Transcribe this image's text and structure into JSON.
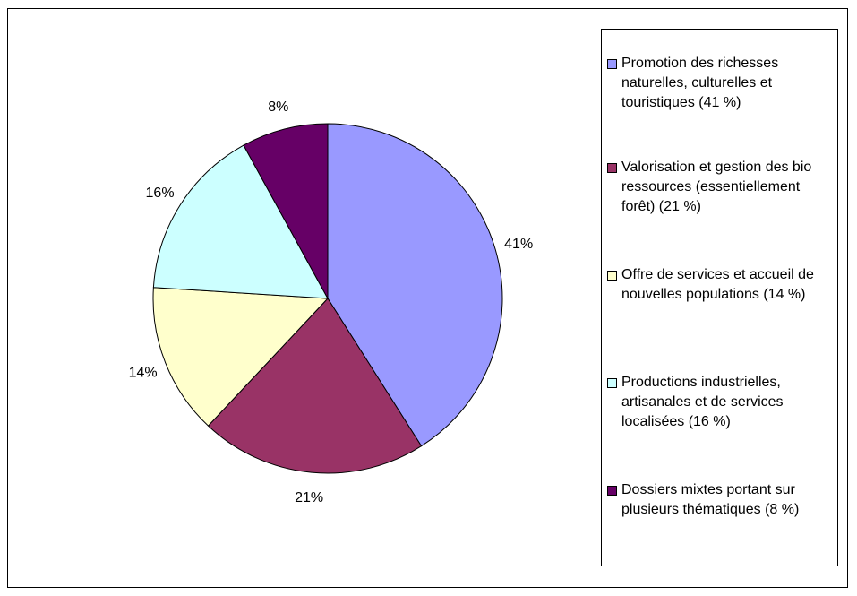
{
  "chart_data": {
    "type": "pie",
    "start": "top",
    "direction": "clockwise",
    "slices": [
      {
        "label": "Promotion des richesses naturelles, culturelles et touristiques (41 %)",
        "value": 41,
        "data_label": "41%",
        "color": "#9999FF",
        "legend_lines": [
          "Promotion des richesses",
          "naturelles, culturelles et",
          "touristiques (41 %)"
        ]
      },
      {
        "label": "Valorisation et gestion des bio ressources (essentiellement forêt) (21 %)",
        "value": 21,
        "data_label": "21%",
        "color": "#993366",
        "legend_lines": [
          "Valorisation et gestion des bio",
          "ressources (essentiellement",
          "forêt) (21 %)"
        ]
      },
      {
        "label": "Offre de services et accueil de nouvelles populations (14 %)",
        "value": 14,
        "data_label": "14%",
        "color": "#FFFFCC",
        "legend_lines": [
          "Offre de services et accueil de",
          "nouvelles populations (14 %)"
        ]
      },
      {
        "label": "Productions industrielles, artisanales et de services localisées (16 %)",
        "value": 16,
        "data_label": "16%",
        "color": "#CCFFFF",
        "legend_lines": [
          "Productions industrielles,",
          "artisanales et de services",
          "localisées (16 %)"
        ]
      },
      {
        "label": "Dossiers mixtes portant sur plusieurs thématiques (8 %)",
        "value": 8,
        "data_label": "8%",
        "color": "#660066",
        "legend_lines": [
          "Dossiers mixtes portant sur",
          "plusieurs thématiques (8 %)"
        ]
      }
    ],
    "legend_position": "right"
  }
}
